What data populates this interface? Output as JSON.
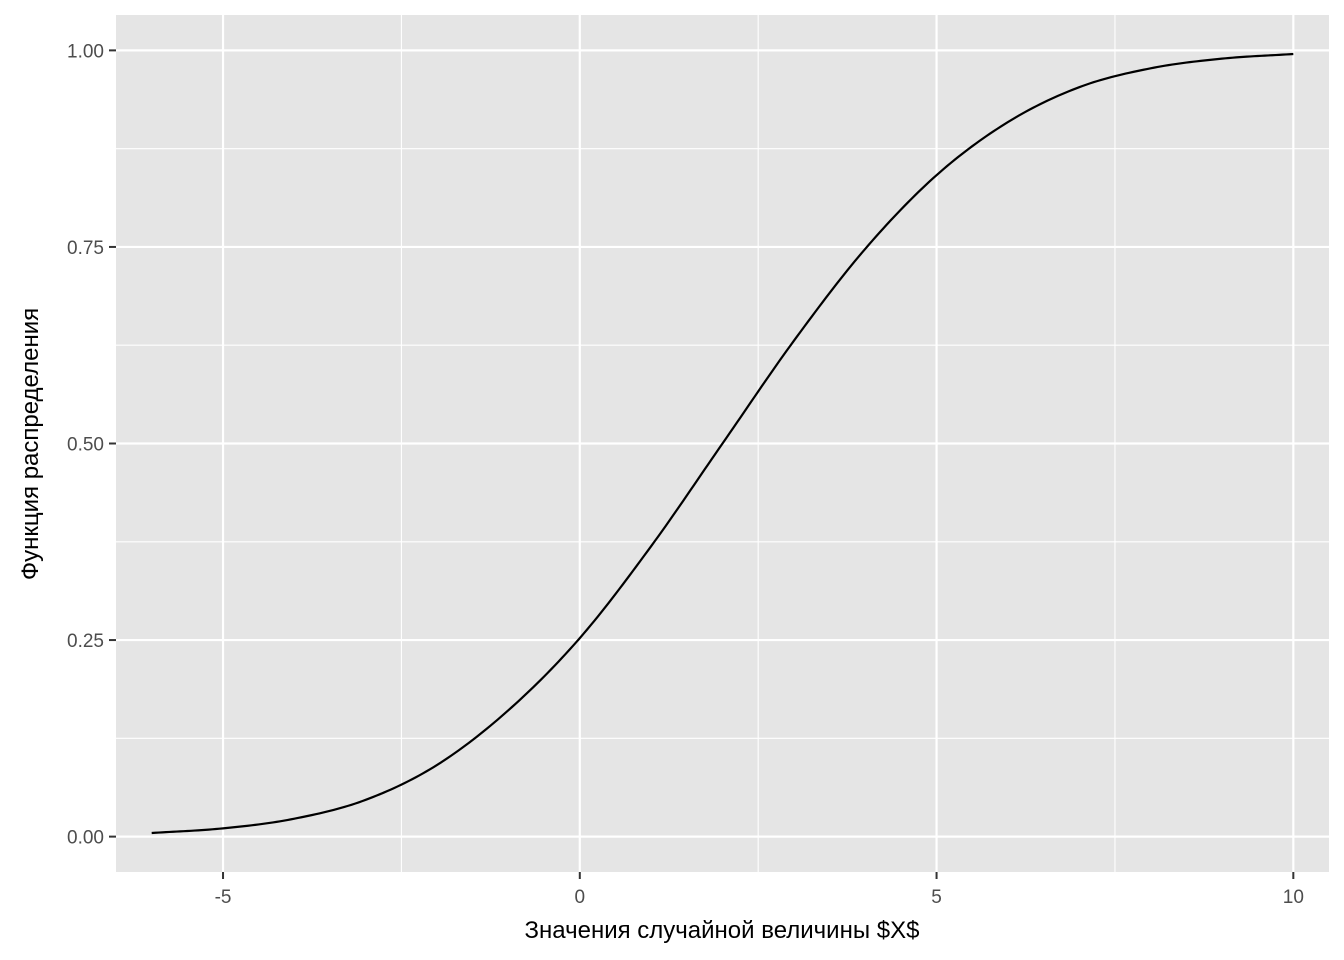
{
  "chart_data": {
    "type": "line",
    "title": "",
    "xlabel": "Значения случайной величины $X$",
    "ylabel": "Функция распределения",
    "xlim": [
      -6.5,
      10.5
    ],
    "ylim": [
      -0.045,
      1.045
    ],
    "x_ticks": [
      -5,
      0,
      5,
      10
    ],
    "x_tick_labels": [
      "-5",
      "0",
      "5",
      "10"
    ],
    "y_ticks": [
      0,
      0.25,
      0.5,
      0.75,
      1
    ],
    "y_tick_labels": [
      "0.00",
      "0.25",
      "0.50",
      "0.75",
      "1.00"
    ],
    "grid": true,
    "legend": "none",
    "series": [
      {
        "x": [
          -6,
          -5,
          -4,
          -3,
          -2,
          -1,
          0,
          1,
          2,
          3,
          4,
          5,
          6,
          7,
          8,
          9,
          10
        ],
        "y": [
          0.0046,
          0.0105,
          0.0228,
          0.0468,
          0.0912,
          0.1608,
          0.2525,
          0.3694,
          0.5,
          0.6306,
          0.7475,
          0.8413,
          0.9088,
          0.9532,
          0.9772,
          0.9895,
          0.9954
        ]
      }
    ],
    "colors": {
      "panel": "#e5e5e5",
      "grid_major": "#ffffff",
      "line": "#000000",
      "tick_text": "#4d4d4d"
    }
  }
}
